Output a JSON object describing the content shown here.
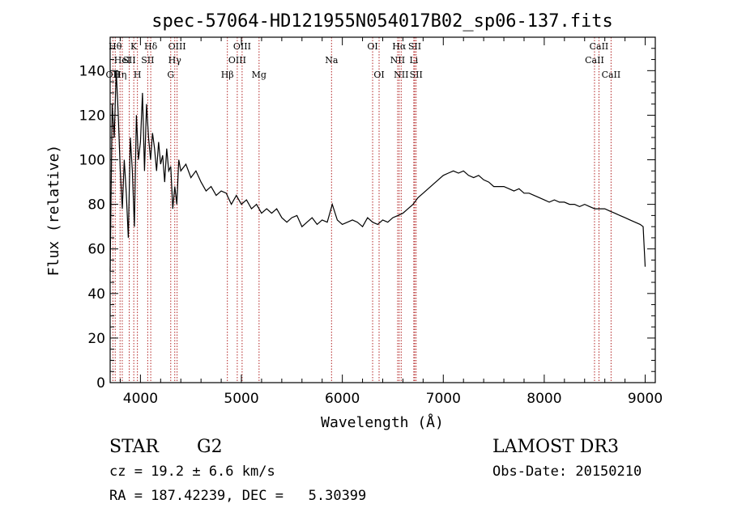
{
  "chart_data": {
    "type": "line",
    "title": "spec-57064-HD121955N054017B02_sp06-137.fits",
    "xlabel": "Wavelength (Å)",
    "ylabel": "Flux (relative)",
    "xlim": [
      3700,
      9100
    ],
    "ylim": [
      0,
      155
    ],
    "xticks": [
      4000,
      5000,
      6000,
      7000,
      8000,
      9000
    ],
    "yticks": [
      0,
      20,
      40,
      60,
      80,
      100,
      120,
      140
    ],
    "series": [
      {
        "x": [
          3700,
          3720,
          3740,
          3760,
          3780,
          3800,
          3820,
          3840,
          3860,
          3880,
          3900,
          3920,
          3940,
          3960,
          3980,
          4000,
          4020,
          4040,
          4060,
          4080,
          4100,
          4120,
          4140,
          4160,
          4180,
          4200,
          4220,
          4240,
          4260,
          4280,
          4300,
          4320,
          4340,
          4360,
          4380,
          4400,
          4450,
          4500,
          4550,
          4600,
          4650,
          4700,
          4750,
          4800,
          4850,
          4900,
          4950,
          5000,
          5050,
          5100,
          5150,
          5200,
          5250,
          5300,
          5350,
          5400,
          5450,
          5500,
          5550,
          5600,
          5650,
          5700,
          5750,
          5800,
          5850,
          5900,
          5950,
          6000,
          6050,
          6100,
          6150,
          6200,
          6250,
          6300,
          6350,
          6400,
          6450,
          6500,
          6550,
          6600,
          6650,
          6700,
          6750,
          6800,
          6850,
          6900,
          6950,
          7000,
          7050,
          7100,
          7150,
          7200,
          7250,
          7300,
          7350,
          7400,
          7450,
          7500,
          7550,
          7600,
          7650,
          7700,
          7750,
          7800,
          7850,
          7900,
          7950,
          8000,
          8050,
          8100,
          8150,
          8200,
          8250,
          8300,
          8350,
          8400,
          8450,
          8500,
          8550,
          8600,
          8650,
          8700,
          8750,
          8800,
          8850,
          8900,
          8950,
          8980,
          9000
        ],
        "y": [
          50,
          125,
          110,
          140,
          120,
          95,
          78,
          100,
          85,
          65,
          110,
          95,
          70,
          120,
          100,
          108,
          130,
          95,
          125,
          110,
          100,
          112,
          105,
          95,
          108,
          98,
          102,
          90,
          105,
          95,
          97,
          78,
          88,
          80,
          100,
          95,
          98,
          92,
          95,
          90,
          86,
          88,
          84,
          86,
          85,
          80,
          84,
          80,
          82,
          78,
          80,
          76,
          78,
          76,
          78,
          74,
          72,
          74,
          75,
          70,
          72,
          74,
          71,
          73,
          72,
          80,
          73,
          71,
          72,
          73,
          72,
          70,
          74,
          72,
          71,
          73,
          72,
          74,
          75,
          76,
          78,
          80,
          83,
          85,
          87,
          89,
          91,
          93,
          94,
          95,
          94,
          95,
          93,
          92,
          93,
          91,
          90,
          88,
          88,
          88,
          87,
          86,
          87,
          85,
          85,
          84,
          83,
          82,
          81,
          82,
          81,
          81,
          80,
          80,
          79,
          80,
          79,
          78,
          78,
          78,
          77,
          76,
          75,
          74,
          73,
          72,
          71,
          70,
          52
        ]
      }
    ],
    "lines": [
      {
        "x": 3727,
        "label": "OII",
        "row": 3
      },
      {
        "x": 3750,
        "label": "Hθ",
        "row": 1
      },
      {
        "x": 3798,
        "label": "Hη",
        "row": 3
      },
      {
        "x": 3820,
        "label": "HeI",
        "row": 2
      },
      {
        "x": 3889,
        "label": "SII",
        "row": 2
      },
      {
        "x": 3934,
        "label": "K",
        "row": 1
      },
      {
        "x": 3970,
        "label": "H",
        "row": 3
      },
      {
        "x": 4072,
        "label": "SII",
        "row": 2
      },
      {
        "x": 4102,
        "label": "Hδ",
        "row": 1
      },
      {
        "x": 4300,
        "label": "G",
        "row": 3
      },
      {
        "x": 4340,
        "label": "Hγ",
        "row": 2
      },
      {
        "x": 4363,
        "label": "OIII",
        "row": 1
      },
      {
        "x": 4861,
        "label": "Hβ",
        "row": 3
      },
      {
        "x": 4959,
        "label": "OIII",
        "row": 2
      },
      {
        "x": 5007,
        "label": "OIII",
        "row": 1
      },
      {
        "x": 5175,
        "label": "Mg",
        "row": 3
      },
      {
        "x": 5893,
        "label": "Na",
        "row": 2
      },
      {
        "x": 6300,
        "label": "OI",
        "row": 1
      },
      {
        "x": 6364,
        "label": "OI",
        "row": 3
      },
      {
        "x": 6548,
        "label": "NII",
        "row": 2
      },
      {
        "x": 6563,
        "label": "Hα",
        "row": 1
      },
      {
        "x": 6583,
        "label": "NII",
        "row": 3
      },
      {
        "x": 6708,
        "label": "Li",
        "row": 2
      },
      {
        "x": 6717,
        "label": "SII",
        "row": 1
      },
      {
        "x": 6731,
        "label": "SII",
        "row": 3
      },
      {
        "x": 8498,
        "label": "CaII",
        "row": 2
      },
      {
        "x": 8542,
        "label": "CaII",
        "row": 1
      },
      {
        "x": 8662,
        "label": "CaII",
        "row": 3
      }
    ],
    "grid": false,
    "legend": "none"
  },
  "info": {
    "object_class": "STAR",
    "subclass": "G2",
    "survey": "LAMOST DR3",
    "cz": "cz = 19.2 ± 6.6 km/s",
    "obs_date": "Obs-Date: 20150210",
    "coords": "RA = 187.42239, DEC =   5.30399"
  },
  "colors": {
    "spectrum": "#000000",
    "line_markers": "#b22222"
  }
}
